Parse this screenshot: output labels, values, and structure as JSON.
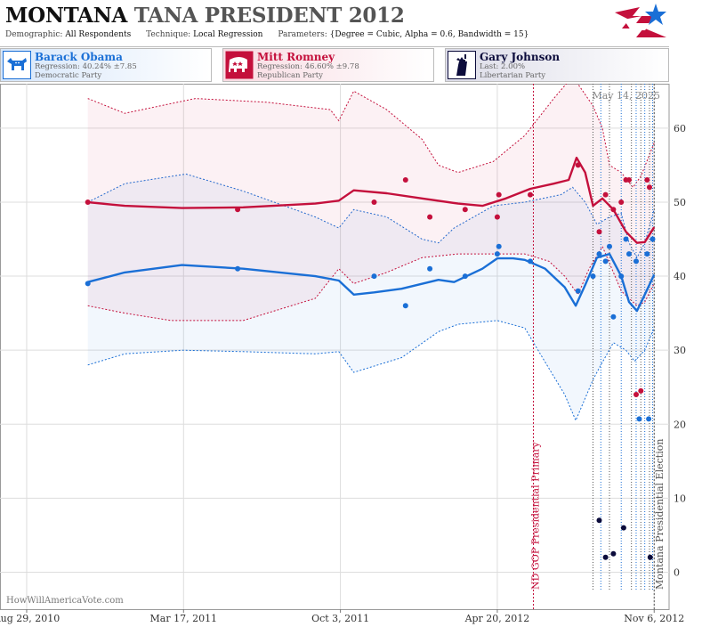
{
  "header": {
    "title_state": "MONTANA",
    "title_rest": "TANA PRESIDENT 2012",
    "demographic_label": "Demographic:",
    "demographic_value": "All Respondents",
    "technique_label": "Technique:",
    "technique_value": "Local Regression",
    "parameters_label": "Parameters:",
    "parameters_value": "{Degree = Cubic, Alpha = 0.6, Bandwidth = 15}"
  },
  "colors": {
    "obama": "#1a6fd6",
    "romney": "#c4103c",
    "johnson": "#0b0b3b",
    "grid": "#dddddd"
  },
  "candidates": [
    {
      "name": "Barack Obama",
      "stat": "Regression: 40.24% ±7.85",
      "party": "Democratic Party",
      "icon": "donkey-icon"
    },
    {
      "name": "Mitt Romney",
      "stat": "Regression: 46.60% ±9.78",
      "party": "Republican Party",
      "icon": "elephant-icon"
    },
    {
      "name": "Gary Johnson",
      "stat": "Last: 2.00%",
      "party": "Libertarian Party",
      "icon": "liberty-icon"
    }
  ],
  "chart_data": {
    "type": "line",
    "date_stamp": "May 14, 2025",
    "watermark": "HowWillAmericaVote.com",
    "x_ticks": [
      "Aug 29, 2010",
      "Mar 17, 2011",
      "Oct 3, 2011",
      "Apr 20, 2012",
      "Nov 6, 2012"
    ],
    "x_range": [
      "2010-07-26",
      "2012-11-25"
    ],
    "y_ticks": [
      0,
      10,
      20,
      30,
      40,
      50,
      60
    ],
    "ylim": [
      -5,
      66
    ],
    "grid": true,
    "events": [
      {
        "date": "2012-06-05",
        "label": "ND GOP Presidential Primary",
        "color": "#c4103c"
      },
      {
        "date": "2012-11-06",
        "label": "Montana Presidential Election",
        "color": "#555555"
      }
    ],
    "poll_markers": [
      "2012-08-20",
      "2012-08-30",
      "2012-09-10",
      "2012-09-25",
      "2012-10-08",
      "2012-10-14",
      "2012-10-20",
      "2012-10-25",
      "2012-10-31",
      "2012-11-04"
    ],
    "series": [
      {
        "name": "Barack Obama",
        "key": "obama",
        "trend": [
          [
            "2010-11-15",
            39.2
          ],
          [
            "2011-01-01",
            40.5
          ],
          [
            "2011-03-15",
            41.5
          ],
          [
            "2011-06-01",
            41.0
          ],
          [
            "2011-09-01",
            40.0
          ],
          [
            "2011-10-01",
            39.4
          ],
          [
            "2011-10-20",
            37.5
          ],
          [
            "2011-11-15",
            37.8
          ],
          [
            "2011-12-20",
            38.3
          ],
          [
            "2012-02-05",
            39.5
          ],
          [
            "2012-02-25",
            39.2
          ],
          [
            "2012-04-01",
            41.0
          ],
          [
            "2012-04-20",
            42.4
          ],
          [
            "2012-05-10",
            42.4
          ],
          [
            "2012-05-25",
            42.2
          ],
          [
            "2012-06-20",
            41.0
          ],
          [
            "2012-07-15",
            38.5
          ],
          [
            "2012-07-29",
            36.0
          ],
          [
            "2012-08-10",
            38.8
          ],
          [
            "2012-08-25",
            42.5
          ],
          [
            "2012-09-10",
            43.0
          ],
          [
            "2012-09-25",
            40.0
          ],
          [
            "2012-10-05",
            36.5
          ],
          [
            "2012-10-15",
            35.3
          ],
          [
            "2012-10-25",
            37.5
          ],
          [
            "2012-11-06",
            40.2
          ]
        ],
        "upper": [
          [
            "2010-11-15",
            50.0
          ],
          [
            "2011-01-01",
            52.5
          ],
          [
            "2011-03-20",
            53.8
          ],
          [
            "2011-06-01",
            51.5
          ],
          [
            "2011-09-01",
            48.0
          ],
          [
            "2011-10-01",
            46.5
          ],
          [
            "2011-10-20",
            49.0
          ],
          [
            "2011-12-01",
            48.0
          ],
          [
            "2012-01-15",
            45.0
          ],
          [
            "2012-02-05",
            44.5
          ],
          [
            "2012-02-25",
            46.5
          ],
          [
            "2012-04-15",
            49.5
          ],
          [
            "2012-05-25",
            50.0
          ],
          [
            "2012-07-10",
            51.0
          ],
          [
            "2012-07-25",
            52.0
          ],
          [
            "2012-08-10",
            50.0
          ],
          [
            "2012-08-25",
            47.0
          ],
          [
            "2012-09-10",
            48.0
          ],
          [
            "2012-09-25",
            48.5
          ],
          [
            "2012-10-05",
            44.5
          ],
          [
            "2012-10-15",
            42.5
          ],
          [
            "2012-10-25",
            44.5
          ],
          [
            "2012-11-06",
            49.0
          ]
        ],
        "lower": [
          [
            "2010-11-15",
            28.0
          ],
          [
            "2011-01-01",
            29.5
          ],
          [
            "2011-03-15",
            30.0
          ],
          [
            "2011-06-01",
            29.8
          ],
          [
            "2011-09-01",
            29.5
          ],
          [
            "2011-10-01",
            29.8
          ],
          [
            "2011-10-20",
            27.0
          ],
          [
            "2011-12-20",
            29.0
          ],
          [
            "2012-02-05",
            32.5
          ],
          [
            "2012-03-01",
            33.5
          ],
          [
            "2012-04-20",
            34.0
          ],
          [
            "2012-05-25",
            33.0
          ],
          [
            "2012-06-25",
            27.5
          ],
          [
            "2012-07-15",
            24.0
          ],
          [
            "2012-07-29",
            20.5
          ],
          [
            "2012-08-20",
            26.0
          ],
          [
            "2012-08-30",
            28.0
          ],
          [
            "2012-09-15",
            31.0
          ],
          [
            "2012-10-01",
            30.0
          ],
          [
            "2012-10-12",
            28.5
          ],
          [
            "2012-10-25",
            30.0
          ],
          [
            "2012-11-06",
            33.0
          ]
        ],
        "points": [
          [
            "2010-11-15",
            39.0
          ],
          [
            "2011-05-25",
            41.0
          ],
          [
            "2011-11-15",
            40.0
          ],
          [
            "2011-12-25",
            36.0
          ],
          [
            "2012-01-25",
            41.0
          ],
          [
            "2012-03-10",
            40.0
          ],
          [
            "2012-04-20",
            43.0
          ],
          [
            "2012-04-22",
            44.0
          ],
          [
            "2012-06-01",
            42.0
          ],
          [
            "2012-08-01",
            38.0
          ],
          [
            "2012-08-20",
            40.0
          ],
          [
            "2012-08-28",
            43.0
          ],
          [
            "2012-09-05",
            42.0
          ],
          [
            "2012-09-10",
            44.0
          ],
          [
            "2012-09-15",
            34.5
          ],
          [
            "2012-09-25",
            40.0
          ],
          [
            "2012-10-01",
            45.0
          ],
          [
            "2012-10-05",
            43.0
          ],
          [
            "2012-10-14",
            42.0
          ],
          [
            "2012-10-18",
            20.7
          ],
          [
            "2012-10-28",
            43.0
          ],
          [
            "2012-10-30",
            20.7
          ],
          [
            "2012-11-04",
            45.0
          ]
        ]
      },
      {
        "name": "Mitt Romney",
        "key": "romney",
        "trend": [
          [
            "2010-11-15",
            50.0
          ],
          [
            "2011-01-01",
            49.5
          ],
          [
            "2011-03-15",
            49.2
          ],
          [
            "2011-06-01",
            49.3
          ],
          [
            "2011-09-01",
            49.8
          ],
          [
            "2011-10-01",
            50.2
          ],
          [
            "2011-10-20",
            51.6
          ],
          [
            "2011-12-01",
            51.2
          ],
          [
            "2012-01-15",
            50.5
          ],
          [
            "2012-03-01",
            49.8
          ],
          [
            "2012-04-01",
            49.5
          ],
          [
            "2012-05-01",
            50.5
          ],
          [
            "2012-06-01",
            51.8
          ],
          [
            "2012-07-01",
            52.5
          ],
          [
            "2012-07-20",
            53.0
          ],
          [
            "2012-07-30",
            56.0
          ],
          [
            "2012-08-10",
            54.0
          ],
          [
            "2012-08-20",
            49.5
          ],
          [
            "2012-09-01",
            50.5
          ],
          [
            "2012-09-15",
            49.0
          ],
          [
            "2012-10-01",
            46.0
          ],
          [
            "2012-10-15",
            44.5
          ],
          [
            "2012-10-25",
            44.6
          ],
          [
            "2012-11-06",
            46.6
          ]
        ],
        "upper": [
          [
            "2010-11-15",
            64.0
          ],
          [
            "2011-01-01",
            62.0
          ],
          [
            "2011-04-01",
            64.0
          ],
          [
            "2011-07-01",
            63.5
          ],
          [
            "2011-09-20",
            62.5
          ],
          [
            "2011-10-01",
            61.0
          ],
          [
            "2011-10-20",
            65.0
          ],
          [
            "2011-12-01",
            62.5
          ],
          [
            "2012-01-15",
            58.5
          ],
          [
            "2012-02-05",
            55.0
          ],
          [
            "2012-03-01",
            54.0
          ],
          [
            "2012-04-15",
            55.5
          ],
          [
            "2012-05-25",
            59.0
          ],
          [
            "2012-07-01",
            64.0
          ],
          [
            "2012-07-25",
            67.0
          ],
          [
            "2012-08-20",
            63.0
          ],
          [
            "2012-09-01",
            60.0
          ],
          [
            "2012-09-10",
            55.0
          ],
          [
            "2012-09-25",
            54.0
          ],
          [
            "2012-10-10",
            52.0
          ],
          [
            "2012-10-20",
            53.5
          ],
          [
            "2012-11-06",
            58.0
          ]
        ],
        "lower": [
          [
            "2010-11-15",
            36.0
          ],
          [
            "2011-01-01",
            35.0
          ],
          [
            "2011-03-01",
            34.0
          ],
          [
            "2011-06-01",
            34.0
          ],
          [
            "2011-09-01",
            37.0
          ],
          [
            "2011-10-01",
            41.0
          ],
          [
            "2011-10-20",
            39.0
          ],
          [
            "2011-12-01",
            40.5
          ],
          [
            "2012-01-15",
            42.5
          ],
          [
            "2012-03-01",
            43.0
          ],
          [
            "2012-04-15",
            43.0
          ],
          [
            "2012-05-25",
            43.0
          ],
          [
            "2012-06-25",
            42.0
          ],
          [
            "2012-07-15",
            40.0
          ],
          [
            "2012-08-01",
            37.5
          ],
          [
            "2012-08-15",
            41.0
          ],
          [
            "2012-09-01",
            44.0
          ],
          [
            "2012-09-25",
            38.0
          ],
          [
            "2012-10-05",
            37.0
          ],
          [
            "2012-10-15",
            36.0
          ],
          [
            "2012-10-25",
            36.5
          ],
          [
            "2012-11-06",
            39.0
          ]
        ],
        "points": [
          [
            "2010-11-15",
            50.0
          ],
          [
            "2011-05-25",
            49.0
          ],
          [
            "2011-11-15",
            50.0
          ],
          [
            "2011-12-25",
            53.0
          ],
          [
            "2012-01-25",
            48.0
          ],
          [
            "2012-03-10",
            49.0
          ],
          [
            "2012-04-20",
            48.0
          ],
          [
            "2012-04-22",
            51.0
          ],
          [
            "2012-06-01",
            51.0
          ],
          [
            "2012-08-01",
            55.0
          ],
          [
            "2012-08-28",
            46.0
          ],
          [
            "2012-09-05",
            51.0
          ],
          [
            "2012-09-15",
            49.0
          ],
          [
            "2012-09-25",
            50.0
          ],
          [
            "2012-10-01",
            53.0
          ],
          [
            "2012-10-05",
            53.0
          ],
          [
            "2012-10-14",
            24.0
          ],
          [
            "2012-10-20",
            24.5
          ],
          [
            "2012-10-28",
            53.0
          ],
          [
            "2012-10-31",
            52.0
          ]
        ]
      },
      {
        "name": "Gary Johnson",
        "key": "johnson",
        "trend": [],
        "upper": [],
        "lower": [],
        "points": [
          [
            "2012-08-28",
            7.0
          ],
          [
            "2012-09-05",
            2.0
          ],
          [
            "2012-09-15",
            2.5
          ],
          [
            "2012-09-28",
            6.0
          ],
          [
            "2012-11-01",
            2.0
          ]
        ]
      }
    ]
  }
}
